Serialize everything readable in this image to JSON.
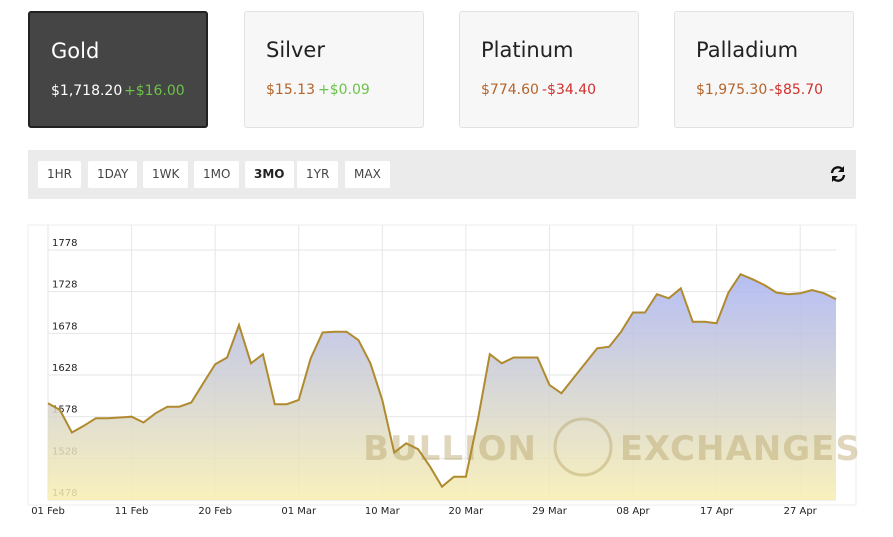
{
  "metals": [
    {
      "name": "Gold",
      "price": "$1,718.20",
      "change": "+$16.00",
      "change_color": "#6cc24a"
    },
    {
      "name": "Silver",
      "price": "$15.13",
      "change": "+$0.09",
      "change_color": "#6cc24a"
    },
    {
      "name": "Platinum",
      "price": "$774.60",
      "change": "-$34.40",
      "change_color": "#d0312d"
    },
    {
      "name": "Palladium",
      "price": "$1,975.30",
      "change": "-$85.70",
      "change_color": "#d0312d"
    }
  ],
  "ranges": [
    "1HR",
    "1DAY",
    "1WK",
    "1MO",
    "3MO",
    "1YR",
    "MAX"
  ],
  "chart_data": {
    "type": "area",
    "watermark": "BULLION EXCHANGES",
    "categories": [
      "01 Feb",
      null,
      null,
      null,
      null,
      null,
      null,
      "11 Feb",
      null,
      null,
      null,
      null,
      null,
      null,
      "20 Feb",
      null,
      null,
      null,
      null,
      null,
      null,
      "01 Mar",
      null,
      null,
      null,
      null,
      null,
      null,
      "10 Mar",
      null,
      null,
      null,
      null,
      null,
      null,
      "20 Mar",
      null,
      null,
      null,
      null,
      null,
      null,
      "29 Mar",
      null,
      null,
      null,
      null,
      null,
      null,
      "08 Apr",
      null,
      null,
      null,
      null,
      null,
      null,
      "17 Apr",
      null,
      null,
      null,
      null,
      null,
      null,
      "27 Apr",
      null,
      null,
      null
    ],
    "values": [
      1594,
      1586,
      1559,
      1567,
      1576,
      1576,
      1577,
      1578,
      1571,
      1582,
      1590,
      1590,
      1595,
      1618,
      1641,
      1649,
      1688,
      1642,
      1653,
      1593,
      1593,
      1598,
      1648,
      1679,
      1680,
      1680,
      1670,
      1642,
      1598,
      1535,
      1546,
      1539,
      1518,
      1494,
      1506,
      1506,
      1574,
      1653,
      1642,
      1649,
      1649,
      1649,
      1616,
      1606,
      1624,
      1642,
      1660,
      1662,
      1680,
      1703,
      1703,
      1725,
      1720,
      1732,
      1692,
      1692,
      1690,
      1727,
      1749,
      1743,
      1736,
      1727,
      1725,
      1726,
      1730,
      1726,
      1719
    ],
    "color": "#b08a2e",
    "fill_top": "#a9b3f2",
    "fill_bottom": "#f8eeb0",
    "ylim": [
      1478,
      1808
    ],
    "yticks": [
      1478,
      1528,
      1578,
      1628,
      1678,
      1728,
      1778
    ],
    "grid": true
  }
}
